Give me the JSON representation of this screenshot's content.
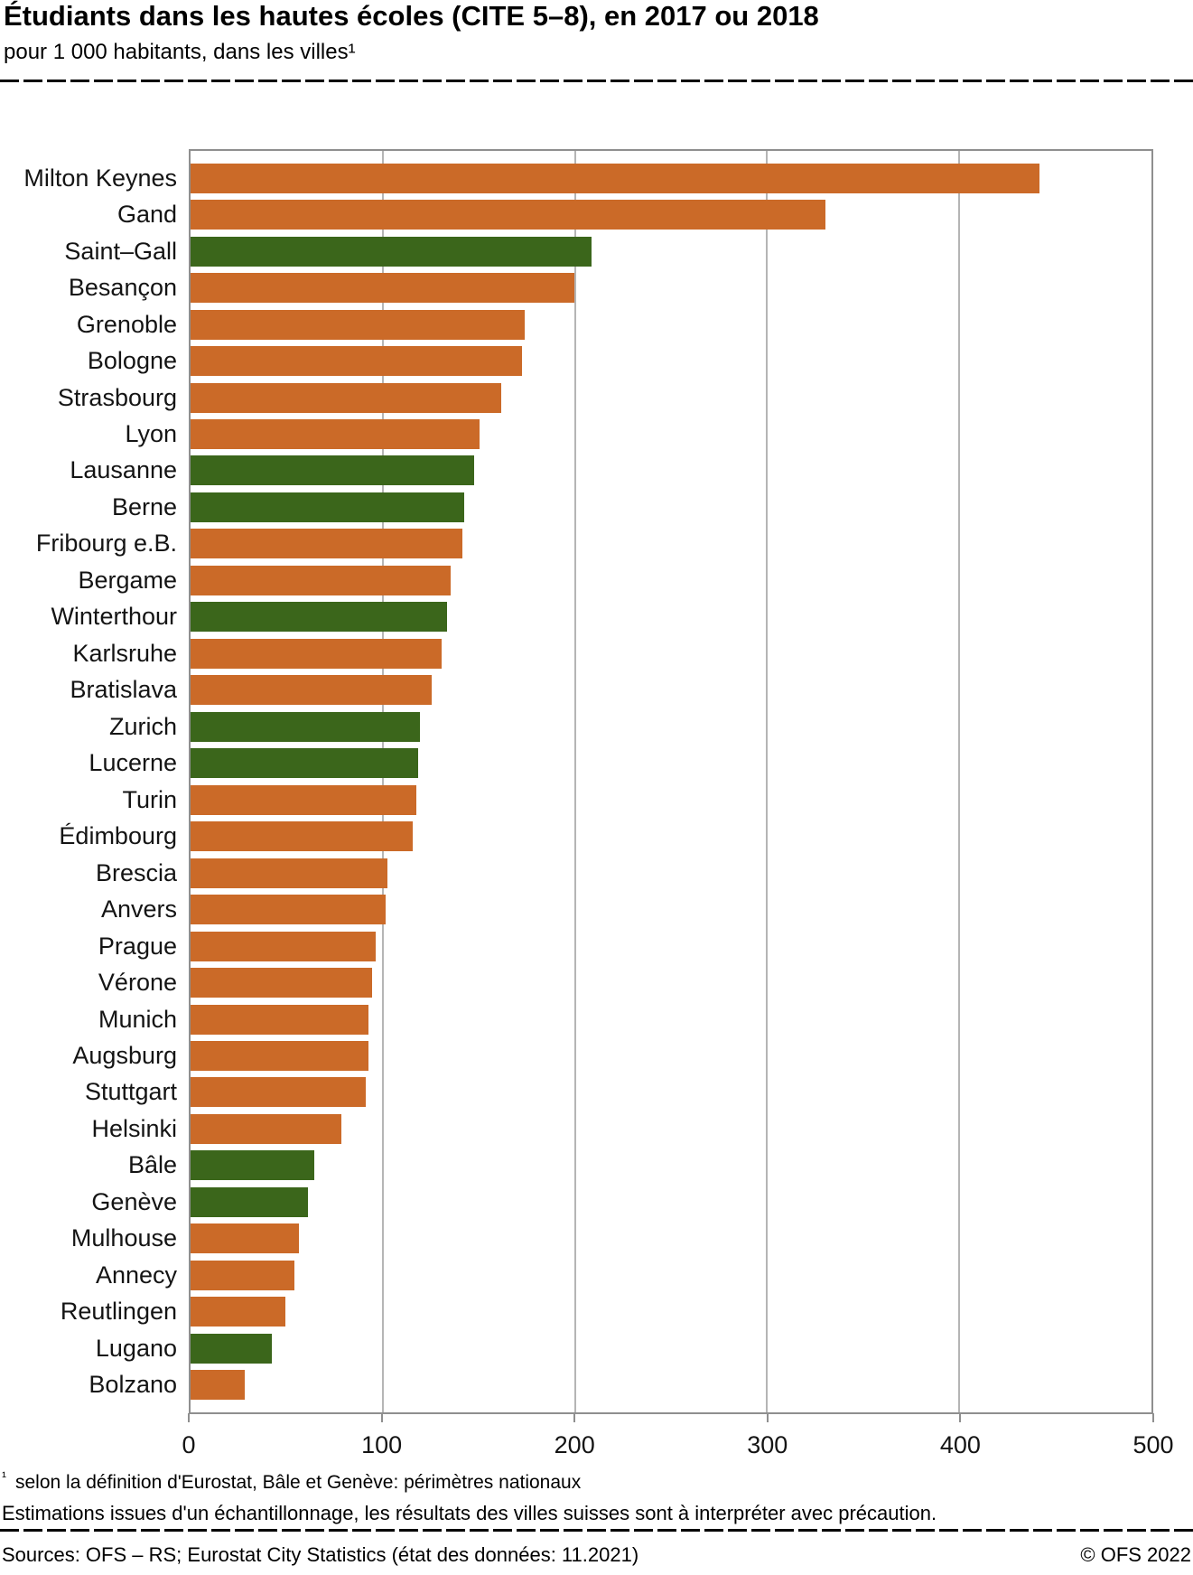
{
  "header": {
    "title": "Étudiants dans les hautes écoles (CITE 5–8), en 2017 ou 2018",
    "subtitle": "pour 1 000 habitants, dans les villes¹"
  },
  "chart_data": {
    "type": "bar",
    "orientation": "horizontal",
    "title": "Étudiants dans les hautes écoles (CITE 5–8), en 2017 ou 2018",
    "xlabel": "",
    "ylabel": "",
    "xlim": [
      0,
      500
    ],
    "x_ticks": [
      0,
      100,
      200,
      300,
      400,
      500
    ],
    "grid": "vertical",
    "legend": "none",
    "colors": {
      "swiss": "#3b661b",
      "other": "#cb6a28"
    },
    "bars": [
      {
        "label": "Milton Keynes",
        "value": 440,
        "group": "other"
      },
      {
        "label": "Gand",
        "value": 329,
        "group": "other"
      },
      {
        "label": "Saint–Gall",
        "value": 208,
        "group": "swiss"
      },
      {
        "label": "Besançon",
        "value": 199,
        "group": "other"
      },
      {
        "label": "Grenoble",
        "value": 173,
        "group": "other"
      },
      {
        "label": "Bologne",
        "value": 172,
        "group": "other"
      },
      {
        "label": "Strasbourg",
        "value": 161,
        "group": "other"
      },
      {
        "label": "Lyon",
        "value": 150,
        "group": "other"
      },
      {
        "label": "Lausanne",
        "value": 147,
        "group": "swiss"
      },
      {
        "label": "Berne",
        "value": 142,
        "group": "swiss"
      },
      {
        "label": "Fribourg e.B.",
        "value": 141,
        "group": "other"
      },
      {
        "label": "Bergame",
        "value": 135,
        "group": "other"
      },
      {
        "label": "Winterthour",
        "value": 133,
        "group": "swiss"
      },
      {
        "label": "Karlsruhe",
        "value": 130,
        "group": "other"
      },
      {
        "label": "Bratislava",
        "value": 125,
        "group": "other"
      },
      {
        "label": "Zurich",
        "value": 119,
        "group": "swiss"
      },
      {
        "label": "Lucerne",
        "value": 118,
        "group": "swiss"
      },
      {
        "label": "Turin",
        "value": 117,
        "group": "other"
      },
      {
        "label": "Édimbourg",
        "value": 115,
        "group": "other"
      },
      {
        "label": "Brescia",
        "value": 102,
        "group": "other"
      },
      {
        "label": "Anvers",
        "value": 101,
        "group": "other"
      },
      {
        "label": "Prague",
        "value": 96,
        "group": "other"
      },
      {
        "label": "Vérone",
        "value": 94,
        "group": "other"
      },
      {
        "label": "Munich",
        "value": 92,
        "group": "other"
      },
      {
        "label": "Augsburg",
        "value": 92,
        "group": "other"
      },
      {
        "label": "Stuttgart",
        "value": 91,
        "group": "other"
      },
      {
        "label": "Helsinki",
        "value": 78,
        "group": "other"
      },
      {
        "label": "Bâle",
        "value": 64,
        "group": "swiss"
      },
      {
        "label": "Genève",
        "value": 61,
        "group": "swiss"
      },
      {
        "label": "Mulhouse",
        "value": 56,
        "group": "other"
      },
      {
        "label": "Annecy",
        "value": 54,
        "group": "other"
      },
      {
        "label": "Reutlingen",
        "value": 49,
        "group": "other"
      },
      {
        "label": "Lugano",
        "value": 42,
        "group": "swiss"
      },
      {
        "label": "Bolzano",
        "value": 28,
        "group": "other"
      }
    ]
  },
  "footnotes": {
    "marker": "¹",
    "note1": "selon la définition d'Eurostat, Bâle et Genève: périmètres nationaux",
    "note2": "Estimations issues d'un échantillonnage, les résultats des villes suisses sont à interpréter avec précaution."
  },
  "footer": {
    "source": "Sources: OFS – RS; Eurostat City Statistics (état des données: 11.2021)",
    "copyright": "© OFS 2022"
  }
}
